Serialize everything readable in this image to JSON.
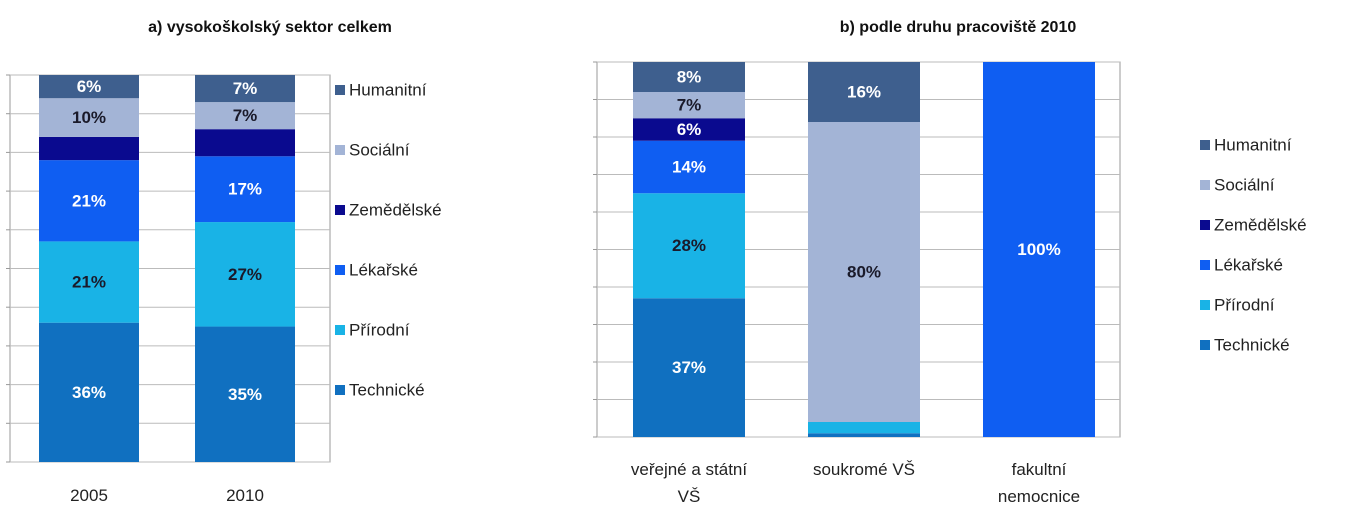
{
  "chart_data": [
    {
      "type": "stacked_bar",
      "title": "a) vysokoškolský sektor celkem",
      "categories": [
        "2005",
        "2010"
      ],
      "ylim": [
        0,
        100
      ],
      "yticks": [
        0,
        10,
        20,
        30,
        40,
        50,
        60,
        70,
        80,
        90,
        100
      ],
      "grid": true,
      "legend": "right",
      "series": [
        {
          "name": "Technické",
          "color": "#1070c0",
          "values": [
            36,
            35
          ],
          "value_labels": [
            "36%",
            "35%"
          ]
        },
        {
          "name": "Přírodní",
          "color": "#19b3e6",
          "values": [
            21,
            27
          ],
          "value_labels": [
            "21%",
            "27%"
          ]
        },
        {
          "name": "Lékařské",
          "color": "#0f5ef2",
          "values": [
            21,
            17
          ],
          "value_labels": [
            "21%",
            "17%"
          ]
        },
        {
          "name": "Zemědělské",
          "color": "#0a0a8f",
          "values": [
            6,
            7
          ],
          "value_labels": [
            null,
            null
          ]
        },
        {
          "name": "Sociální",
          "color": "#a3b4d6",
          "values": [
            10,
            7
          ],
          "value_labels": [
            "10%",
            "7%"
          ]
        },
        {
          "name": "Humanitní",
          "color": "#3e5f8e",
          "values": [
            6,
            7
          ],
          "value_labels": [
            "6%",
            "7%"
          ]
        }
      ]
    },
    {
      "type": "stacked_bar",
      "title": "b) podle druhu pracoviště 2010",
      "categories": [
        "veřejné a státní VŠ",
        "soukromé VŠ",
        "fakultní nemocnice"
      ],
      "ylim": [
        0,
        100
      ],
      "yticks": [
        0,
        10,
        20,
        30,
        40,
        50,
        60,
        70,
        80,
        90,
        100
      ],
      "grid": true,
      "legend": "right",
      "series": [
        {
          "name": "Technické",
          "color": "#1070c0",
          "values": [
            37,
            1,
            0
          ],
          "value_labels": [
            "37%",
            null,
            null
          ]
        },
        {
          "name": "Přírodní",
          "color": "#19b3e6",
          "values": [
            28,
            3,
            0
          ],
          "value_labels": [
            "28%",
            null,
            null
          ]
        },
        {
          "name": "Lékařské",
          "color": "#0f5ef2",
          "values": [
            14,
            0,
            100
          ],
          "value_labels": [
            "14%",
            null,
            "100%"
          ]
        },
        {
          "name": "Zemědělské",
          "color": "#0a0a8f",
          "values": [
            6,
            0,
            0
          ],
          "value_labels": [
            "6%",
            null,
            null
          ]
        },
        {
          "name": "Sociální",
          "color": "#a3b4d6",
          "values": [
            7,
            80,
            0
          ],
          "value_labels": [
            "7%",
            "80%",
            null
          ]
        },
        {
          "name": "Humanitní",
          "color": "#3e5f8e",
          "values": [
            8,
            16,
            0
          ],
          "value_labels": [
            "8%",
            "16%",
            null
          ]
        }
      ]
    }
  ]
}
